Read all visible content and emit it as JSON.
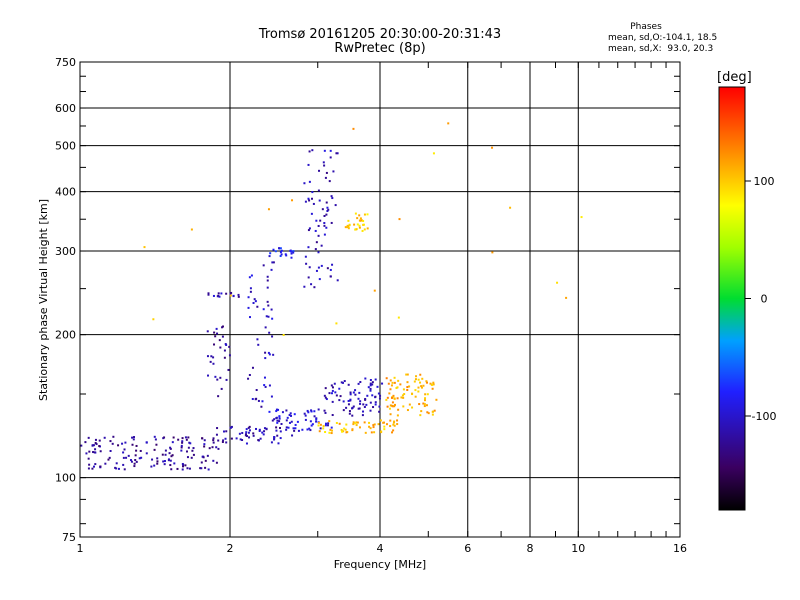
{
  "header": {
    "title": "Tromsø 20161205 20:30:00-20:31:43",
    "subtitle": "RwPretec (8p)"
  },
  "stats": {
    "heading": "Phases",
    "line_o": "mean, sd,O:-104.1, 18.5",
    "line_x": "mean, sd,X:  93.0, 20.3"
  },
  "colorbar": {
    "unit": "[deg]",
    "ticks": [
      {
        "value": 100,
        "label": "100"
      },
      {
        "value": 0,
        "label": "0"
      },
      {
        "value": -100,
        "label": "-100"
      }
    ],
    "range": [
      -180,
      180
    ]
  },
  "chart_data": {
    "type": "scatter",
    "xlabel": "Frequency [MHz]",
    "ylabel": "Stationary phase Virtual Height [km]",
    "x_scale": "log",
    "y_scale": "log",
    "xlim": [
      1,
      16
    ],
    "ylim": [
      75,
      750
    ],
    "grid": true,
    "x_ticks": [
      {
        "v": 1,
        "label": "1"
      },
      {
        "v": 2,
        "label": "2"
      },
      {
        "v": 4,
        "label": "4"
      },
      {
        "v": 6,
        "label": "6"
      },
      {
        "v": 8,
        "label": "8"
      },
      {
        "v": 10,
        "label": "10"
      },
      {
        "v": 16,
        "label": "16"
      }
    ],
    "y_ticks": [
      {
        "v": 75,
        "label": "75"
      },
      {
        "v": 100,
        "label": "100"
      },
      {
        "v": 200,
        "label": "200"
      },
      {
        "v": 300,
        "label": "300"
      },
      {
        "v": 400,
        "label": "400"
      },
      {
        "v": 500,
        "label": "500"
      },
      {
        "v": 600,
        "label": "600"
      },
      {
        "v": 750,
        "label": "750"
      }
    ],
    "point_groups": [
      {
        "name": "",
        "phase": -120,
        "f_range": [
          1.0,
          1.9
        ],
        "h_range": [
          104,
          122
        ],
        "count": 150
      },
      {
        "name": "",
        "phase": -115,
        "f_range": [
          1.85,
          2.7
        ],
        "h_range": [
          118,
          128
        ],
        "count": 60
      },
      {
        "name": "",
        "phase": -100,
        "f_range": [
          2.4,
          3.2
        ],
        "h_range": [
          125,
          140
        ],
        "count": 60
      },
      {
        "name": "",
        "phase": -110,
        "f_range": [
          3.1,
          4.1
        ],
        "h_range": [
          135,
          162
        ],
        "count": 80
      },
      {
        "name": "",
        "phase": 105,
        "f_range": [
          3.0,
          4.4
        ],
        "h_range": [
          124,
          132
        ],
        "count": 60
      },
      {
        "name": "",
        "phase": 110,
        "f_range": [
          4.1,
          5.2
        ],
        "h_range": [
          135,
          165
        ],
        "count": 90
      },
      {
        "name": "",
        "phase": -120,
        "f_range": [
          1.8,
          2.0
        ],
        "h_range": [
          145,
          210
        ],
        "count": 30
      },
      {
        "name": "",
        "phase": -105,
        "f_range": [
          2.15,
          2.45
        ],
        "h_range": [
          140,
          290
        ],
        "count": 50
      },
      {
        "name": "",
        "phase": -80,
        "f_range": [
          2.4,
          2.7
        ],
        "h_range": [
          290,
          305
        ],
        "count": 20
      },
      {
        "name": "",
        "phase": -110,
        "f_range": [
          2.8,
          3.3
        ],
        "h_range": [
          250,
          490
        ],
        "count": 70
      },
      {
        "name": "",
        "phase": -115,
        "f_range": [
          1.8,
          2.1
        ],
        "h_range": [
          240,
          245
        ],
        "count": 15
      },
      {
        "name": "",
        "phase": 100,
        "f_range": [
          3.4,
          3.8
        ],
        "h_range": [
          330,
          360
        ],
        "count": 30
      },
      {
        "name": "",
        "phase": 105,
        "f_range": [
          1.2,
          10.5
        ],
        "h_range": [
          180,
          600
        ],
        "count": 20
      }
    ]
  }
}
